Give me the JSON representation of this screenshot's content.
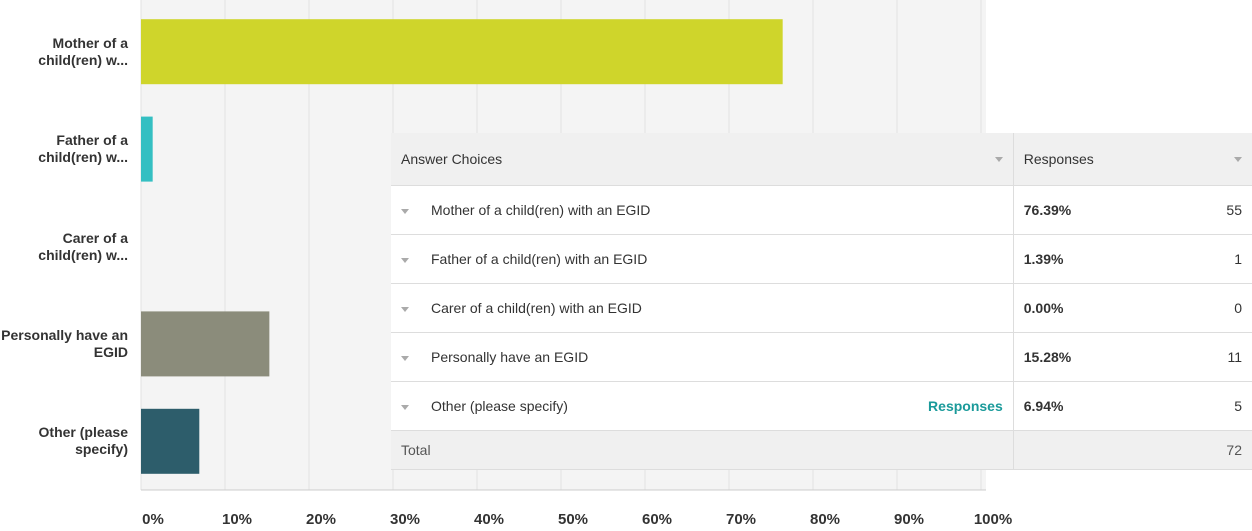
{
  "chart_data": {
    "type": "hbar",
    "categories": [
      "Mother of a child(ren) w...",
      "Father of a child(ren) w...",
      "Carer of a child(ren) w...",
      "Personally have an EGID",
      "Other (please specify)"
    ],
    "values": [
      76.39,
      1.39,
      0,
      15.28,
      6.94
    ],
    "colors": [
      "#cfd52b",
      "#34bfc2",
      "#e05d5d",
      "#8b8c7b",
      "#2d5d6b"
    ],
    "xlim": [
      0,
      100
    ],
    "xticks": [
      {
        "value": 0,
        "label": "0%"
      },
      {
        "value": 10,
        "label": "10%"
      },
      {
        "value": 20,
        "label": "20%"
      },
      {
        "value": 30,
        "label": "30%"
      },
      {
        "value": 40,
        "label": "40%"
      },
      {
        "value": 50,
        "label": "50%"
      },
      {
        "value": 60,
        "label": "60%"
      },
      {
        "value": 70,
        "label": "70%"
      },
      {
        "value": 80,
        "label": "80%"
      },
      {
        "value": 90,
        "label": "90%"
      },
      {
        "value": 100,
        "label": "100%"
      }
    ],
    "grid": true
  },
  "table": {
    "headers": [
      "Answer Choices",
      "Responses"
    ],
    "rows": [
      {
        "choice": "Mother of a child(ren) with an EGID",
        "percent": "76.39%",
        "count": 55
      },
      {
        "choice": "Father of a child(ren) with an EGID",
        "percent": "1.39%",
        "count": 1
      },
      {
        "choice": "Carer of a child(ren) with an EGID",
        "percent": "0.00%",
        "count": 0
      },
      {
        "choice": "Personally have an EGID",
        "percent": "15.28%",
        "count": 11
      },
      {
        "choice": "Other (please specify)",
        "link": "Responses",
        "percent": "6.94%",
        "count": 5
      }
    ],
    "total": {
      "label": "Total",
      "count": 72
    }
  }
}
